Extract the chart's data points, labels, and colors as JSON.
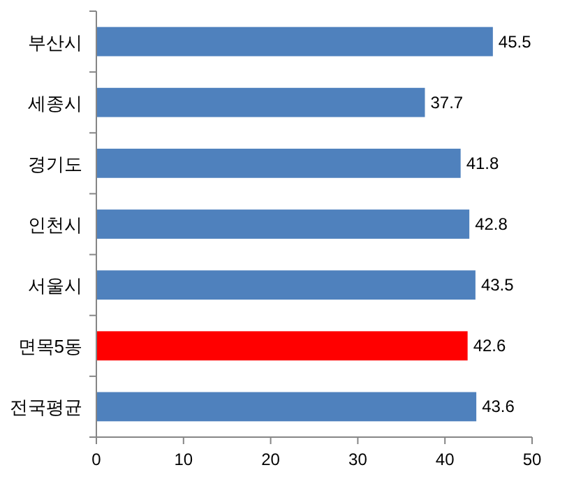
{
  "chart_data": {
    "type": "bar",
    "orientation": "horizontal",
    "categories": [
      "부산시",
      "세종시",
      "경기도",
      "인천시",
      "서울시",
      "면목5동",
      "전국평균"
    ],
    "values": [
      45.5,
      37.7,
      41.8,
      42.8,
      43.5,
      42.6,
      43.6
    ],
    "colors": [
      "#4f81bd",
      "#4f81bd",
      "#4f81bd",
      "#4f81bd",
      "#4f81bd",
      "#ff0000",
      "#4f81bd"
    ],
    "xlim": [
      0,
      50
    ],
    "xticks": [
      0,
      10,
      20,
      30,
      40,
      50
    ],
    "data_labels": true,
    "grid": false
  }
}
